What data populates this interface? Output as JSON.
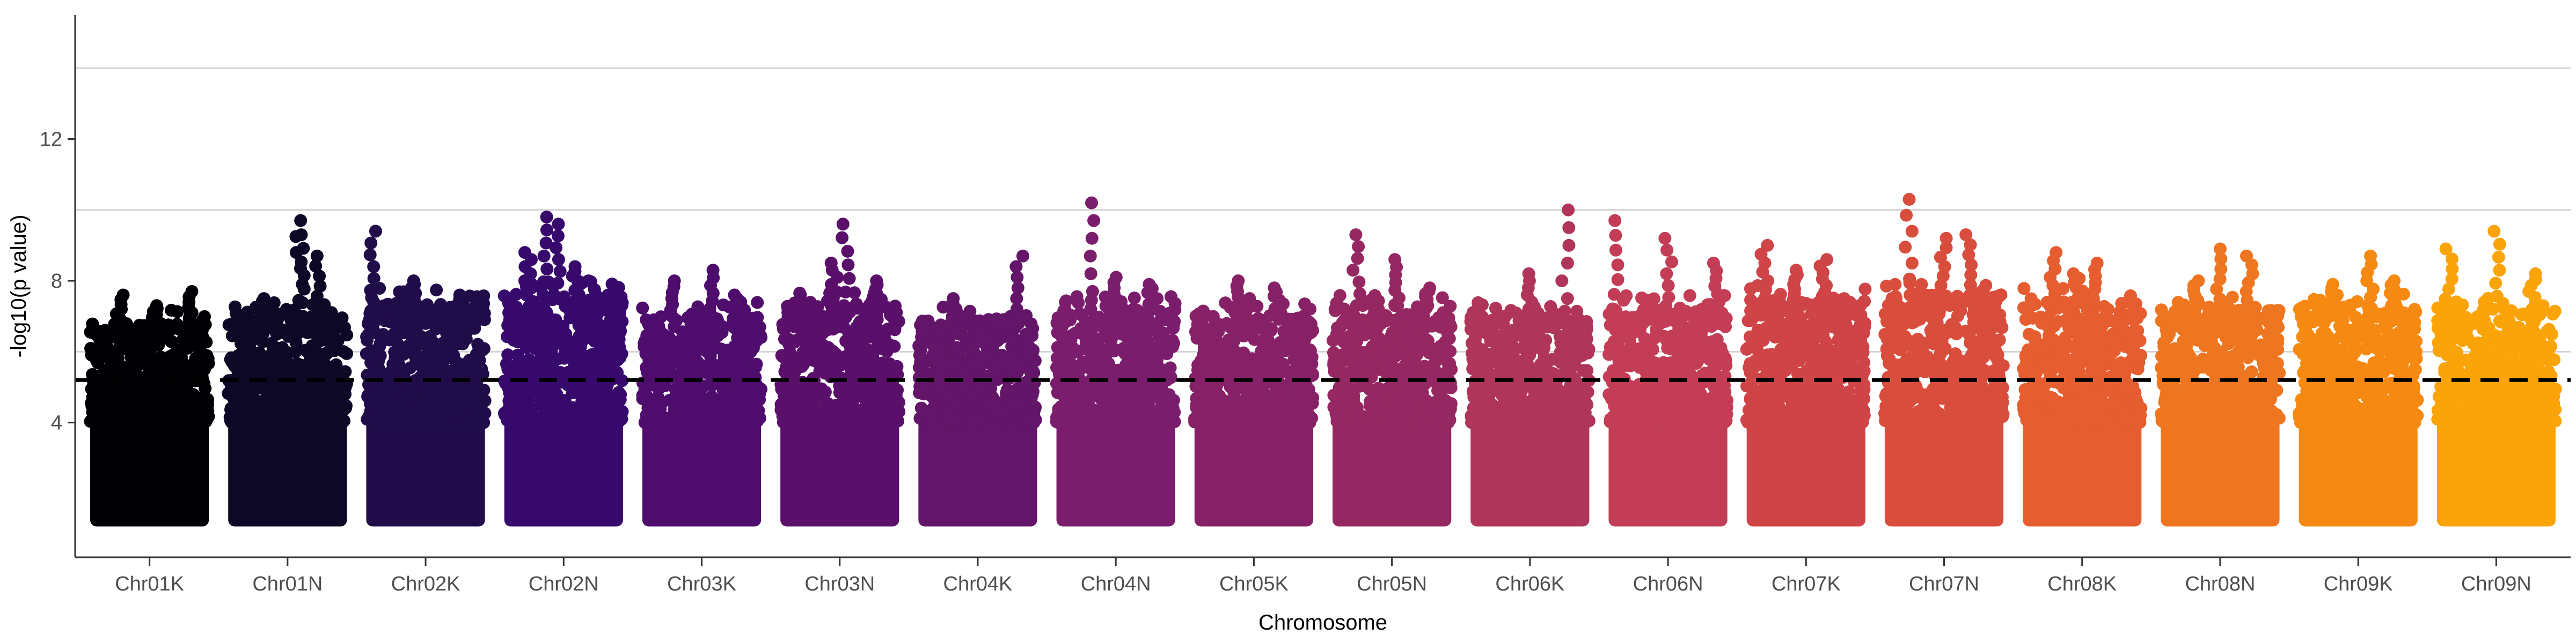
{
  "chart_data": {
    "type": "scatter",
    "subtype": "manhattan",
    "title": "",
    "xlabel": "Chromosome",
    "ylabel": "-log10(p value)",
    "ylim": [
      0.2,
      15.5
    ],
    "yticks": [
      "4",
      "8",
      "12"
    ],
    "y_tick_values": [
      4,
      8,
      12
    ],
    "grid_y_major": [
      6,
      10,
      14
    ],
    "significance_threshold": 5.2,
    "threshold_style": "dashed",
    "grid": true,
    "legend": "none",
    "palette": "inferno",
    "chromosomes": [
      {
        "name": "Chr01K",
        "color": "#000004",
        "base_max": 6.8,
        "peaks": [
          [
            0.25,
            7.6
          ],
          [
            0.85,
            7.7
          ],
          [
            0.55,
            7.3
          ]
        ]
      },
      {
        "name": "Chr01N",
        "color": "#0c0826",
        "base_max": 7.0,
        "peaks": [
          [
            0.6,
            9.7
          ],
          [
            0.62,
            9.3
          ],
          [
            0.75,
            8.7
          ],
          [
            0.3,
            7.5
          ]
        ]
      },
      {
        "name": "Chr02K",
        "color": "#1f0c48",
        "base_max": 7.4,
        "peaks": [
          [
            0.05,
            9.4
          ],
          [
            0.4,
            8.0
          ],
          [
            0.8,
            7.6
          ]
        ]
      },
      {
        "name": "Chr02N",
        "color": "#38096c",
        "base_max": 7.6,
        "peaks": [
          [
            0.35,
            9.8
          ],
          [
            0.45,
            9.6
          ],
          [
            0.2,
            8.8
          ],
          [
            0.6,
            8.4
          ]
        ]
      },
      {
        "name": "Chr03K",
        "color": "#4e0c6c",
        "base_max": 7.0,
        "peaks": [
          [
            0.6,
            8.3
          ],
          [
            0.25,
            8.0
          ],
          [
            0.8,
            7.6
          ]
        ]
      },
      {
        "name": "Chr03N",
        "color": "#5a106b",
        "base_max": 7.3,
        "peaks": [
          [
            0.55,
            9.6
          ],
          [
            0.45,
            8.5
          ],
          [
            0.8,
            8.0
          ]
        ]
      },
      {
        "name": "Chr04K",
        "color": "#631569",
        "base_max": 6.9,
        "peaks": [
          [
            0.85,
            8.7
          ],
          [
            0.3,
            7.5
          ]
        ]
      },
      {
        "name": "Chr04N",
        "color": "#7a1d6d",
        "base_max": 7.2,
        "peaks": [
          [
            0.3,
            10.2
          ],
          [
            0.5,
            8.1
          ],
          [
            0.8,
            7.9
          ]
        ]
      },
      {
        "name": "Chr05K",
        "color": "#862168",
        "base_max": 7.1,
        "peaks": [
          [
            0.35,
            8.0
          ],
          [
            0.7,
            7.8
          ]
        ]
      },
      {
        "name": "Chr05N",
        "color": "#952862",
        "base_max": 7.3,
        "peaks": [
          [
            0.2,
            9.3
          ],
          [
            0.55,
            8.6
          ],
          [
            0.8,
            7.8
          ]
        ]
      },
      {
        "name": "Chr06K",
        "color": "#b0355b",
        "base_max": 7.0,
        "peaks": [
          [
            0.8,
            10.0
          ],
          [
            0.5,
            8.2
          ]
        ]
      },
      {
        "name": "Chr06N",
        "color": "#c23d55",
        "base_max": 7.2,
        "peaks": [
          [
            0.05,
            9.7
          ],
          [
            0.5,
            9.2
          ],
          [
            0.9,
            8.5
          ]
        ]
      },
      {
        "name": "Chr07K",
        "color": "#cf4446",
        "base_max": 7.5,
        "peaks": [
          [
            0.15,
            9.0
          ],
          [
            0.65,
            8.6
          ],
          [
            0.4,
            8.3
          ]
        ]
      },
      {
        "name": "Chr07N",
        "color": "#d94d3d",
        "base_max": 7.6,
        "peaks": [
          [
            0.2,
            10.3
          ],
          [
            0.7,
            9.3
          ],
          [
            0.5,
            9.2
          ]
        ]
      },
      {
        "name": "Chr08K",
        "color": "#e65d2f",
        "base_max": 7.4,
        "peaks": [
          [
            0.25,
            8.8
          ],
          [
            0.6,
            8.5
          ],
          [
            0.45,
            8.2
          ]
        ]
      },
      {
        "name": "Chr08N",
        "color": "#ee7620",
        "base_max": 7.2,
        "peaks": [
          [
            0.5,
            8.9
          ],
          [
            0.75,
            8.7
          ],
          [
            0.3,
            8.0
          ]
        ]
      },
      {
        "name": "Chr09K",
        "color": "#f68911",
        "base_max": 7.3,
        "peaks": [
          [
            0.6,
            8.7
          ],
          [
            0.8,
            8.0
          ],
          [
            0.3,
            7.9
          ]
        ]
      },
      {
        "name": "Chr09N",
        "color": "#fba40a",
        "base_max": 7.2,
        "peaks": [
          [
            0.1,
            8.9
          ],
          [
            0.5,
            9.4
          ],
          [
            0.8,
            8.2
          ]
        ]
      }
    ]
  }
}
